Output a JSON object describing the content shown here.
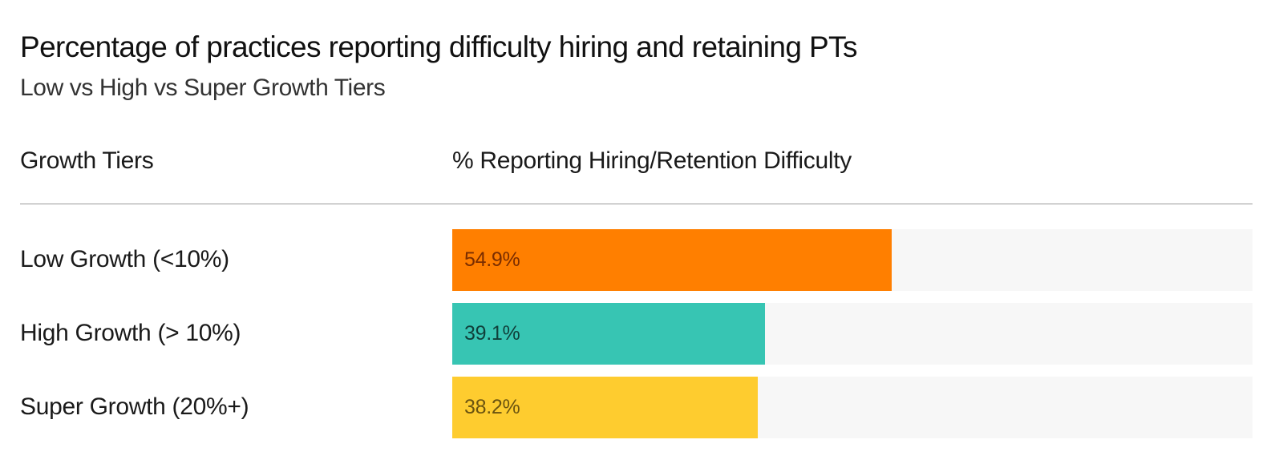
{
  "chart_data": {
    "type": "bar",
    "orientation": "horizontal",
    "title": "Percentage of practices reporting difficulty hiring and retaining PTs",
    "subtitle": "Low vs High vs Super Growth Tiers",
    "category_header": "Growth Tiers",
    "value_header": "% Reporting Hiring/Retention Difficulty",
    "categories": [
      "Low Growth (<10%)",
      "High Growth (> 10%)",
      "Super Growth (20%+)"
    ],
    "values": [
      54.9,
      39.1,
      38.2
    ],
    "value_labels": [
      "54.9%",
      "39.1%",
      "38.2%"
    ],
    "xlim": [
      0,
      100
    ],
    "colors": [
      "#ff7f00",
      "#37c5b3",
      "#fecc2f"
    ],
    "label_colors": [
      "#7a2d00",
      "#103f3a",
      "#6b5410"
    ],
    "track_color": "#f7f7f7"
  }
}
